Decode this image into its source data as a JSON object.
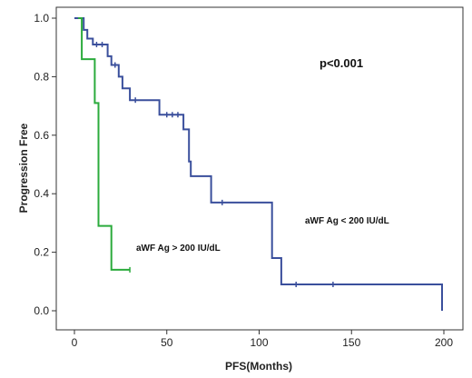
{
  "chart_data": {
    "type": "line",
    "title": "",
    "xlabel": "PFS(Months)",
    "ylabel": "Progression Free",
    "xlim": [
      0,
      200
    ],
    "ylim": [
      0,
      1.0
    ],
    "x_ticks": [
      "0",
      "50",
      "100",
      "150",
      "200"
    ],
    "x_tick_values": [
      0,
      50,
      100,
      150,
      200
    ],
    "y_ticks": [
      "0.0",
      "0.2",
      "0.4",
      "0.6",
      "0.8",
      "1.0"
    ],
    "y_tick_values": [
      0,
      0.2,
      0.4,
      0.6,
      0.8,
      1.0
    ],
    "grid": false,
    "annotations": {
      "p_value": "p<0.001"
    },
    "series": [
      {
        "name": "aWF Ag < 200 IU/dL",
        "color": "#3a4f9c",
        "step": true,
        "points": [
          [
            0,
            1.0
          ],
          [
            5,
            1.0
          ],
          [
            5,
            0.96
          ],
          [
            7,
            0.96
          ],
          [
            7,
            0.93
          ],
          [
            10,
            0.93
          ],
          [
            10,
            0.91
          ],
          [
            18,
            0.91
          ],
          [
            18,
            0.87
          ],
          [
            20,
            0.87
          ],
          [
            20,
            0.84
          ],
          [
            24,
            0.84
          ],
          [
            24,
            0.8
          ],
          [
            26,
            0.8
          ],
          [
            26,
            0.76
          ],
          [
            30,
            0.76
          ],
          [
            30,
            0.72
          ],
          [
            46,
            0.72
          ],
          [
            46,
            0.67
          ],
          [
            59,
            0.67
          ],
          [
            59,
            0.62
          ],
          [
            62,
            0.62
          ],
          [
            62,
            0.51
          ],
          [
            63,
            0.51
          ],
          [
            63,
            0.46
          ],
          [
            74,
            0.46
          ],
          [
            74,
            0.37
          ],
          [
            107,
            0.37
          ],
          [
            107,
            0.18
          ],
          [
            112,
            0.18
          ],
          [
            112,
            0.09
          ],
          [
            199,
            0.09
          ],
          [
            199,
            0.0
          ]
        ]
      },
      {
        "name": "aWF Ag > 200 IU/dL",
        "color": "#2bab3c",
        "step": true,
        "points": [
          [
            2,
            1.0
          ],
          [
            4,
            1.0
          ],
          [
            4,
            0.86
          ],
          [
            11,
            0.86
          ],
          [
            11,
            0.71
          ],
          [
            13,
            0.71
          ],
          [
            13,
            0.29
          ],
          [
            20,
            0.29
          ],
          [
            20,
            0.14
          ],
          [
            30,
            0.14
          ]
        ]
      }
    ],
    "labels": {
      "low_series": "aWF Ag < 200 IU/dL",
      "high_series": "aWF Ag > 200 IU/dL"
    }
  }
}
